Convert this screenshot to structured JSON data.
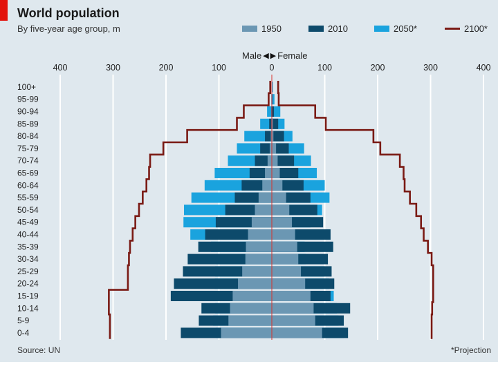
{
  "chart_data": {
    "type": "bar",
    "subtype": "population-pyramid",
    "title": "World population",
    "subtitle": "By five-year age group, m",
    "direction_labels": {
      "left": "Male",
      "right": "Female"
    },
    "xlabel": "",
    "ylabel": "",
    "xlim": [
      -400,
      400
    ],
    "x_ticks": [
      400,
      300,
      200,
      100,
      0,
      100,
      200,
      300,
      400
    ],
    "categories": [
      "100+",
      "95-99",
      "90-94",
      "85-89",
      "80-84",
      "75-79",
      "70-74",
      "65-69",
      "60-64",
      "55-59",
      "50-54",
      "45-49",
      "40-44",
      "35-39",
      "30-34",
      "25-29",
      "20-24",
      "15-19",
      "10-14",
      "5-9",
      "0-4"
    ],
    "series": [
      {
        "name": "1950",
        "color": "#6b97b3",
        "male": [
          0,
          0,
          0,
          1,
          2,
          4,
          8,
          13,
          18,
          25,
          32,
          38,
          45,
          49,
          50,
          56,
          64,
          74,
          79,
          82,
          96
        ],
        "female": [
          0,
          0,
          0,
          2,
          3,
          8,
          11,
          15,
          20,
          27,
          33,
          38,
          44,
          48,
          50,
          55,
          63,
          73,
          79,
          82,
          95
        ]
      },
      {
        "name": "2010",
        "color": "#0d4a6b",
        "male": [
          0,
          0,
          1,
          5,
          13,
          22,
          32,
          42,
          57,
          70,
          88,
          106,
          126,
          139,
          159,
          168,
          185,
          191,
          133,
          138,
          172
        ],
        "female": [
          0,
          1,
          4,
          12,
          23,
          32,
          42,
          50,
          60,
          73,
          86,
          97,
          111,
          116,
          106,
          113,
          118,
          111,
          148,
          136,
          144
        ]
      },
      {
        "name": "2050*",
        "color": "#1aa3de",
        "male": [
          0,
          1,
          9,
          22,
          52,
          66,
          83,
          108,
          127,
          152,
          166,
          167,
          154,
          115,
          105,
          107,
          108,
          104,
          107,
          111,
          106
        ],
        "female": [
          2,
          5,
          16,
          24,
          39,
          61,
          74,
          85,
          100,
          109,
          95,
          73,
          64,
          62,
          64,
          100,
          108,
          117,
          123,
          126,
          136
        ]
      }
    ],
    "line_series": {
      "name": "2100*",
      "color": "#7a1a14",
      "male": [
        3,
        6,
        53,
        66,
        160,
        205,
        230,
        232,
        237,
        244,
        251,
        258,
        263,
        268,
        270,
        272,
        272,
        308,
        308,
        306,
        306
      ],
      "female": [
        12,
        13,
        82,
        102,
        192,
        205,
        242,
        249,
        251,
        261,
        273,
        282,
        287,
        295,
        302,
        305,
        305,
        305,
        303,
        302,
        302
      ]
    },
    "legend": [
      "1950",
      "2010",
      "2050*",
      "2100*"
    ],
    "legend_position": "top-right",
    "grid": true
  },
  "source": "Source: UN",
  "footnote": "*Projection"
}
